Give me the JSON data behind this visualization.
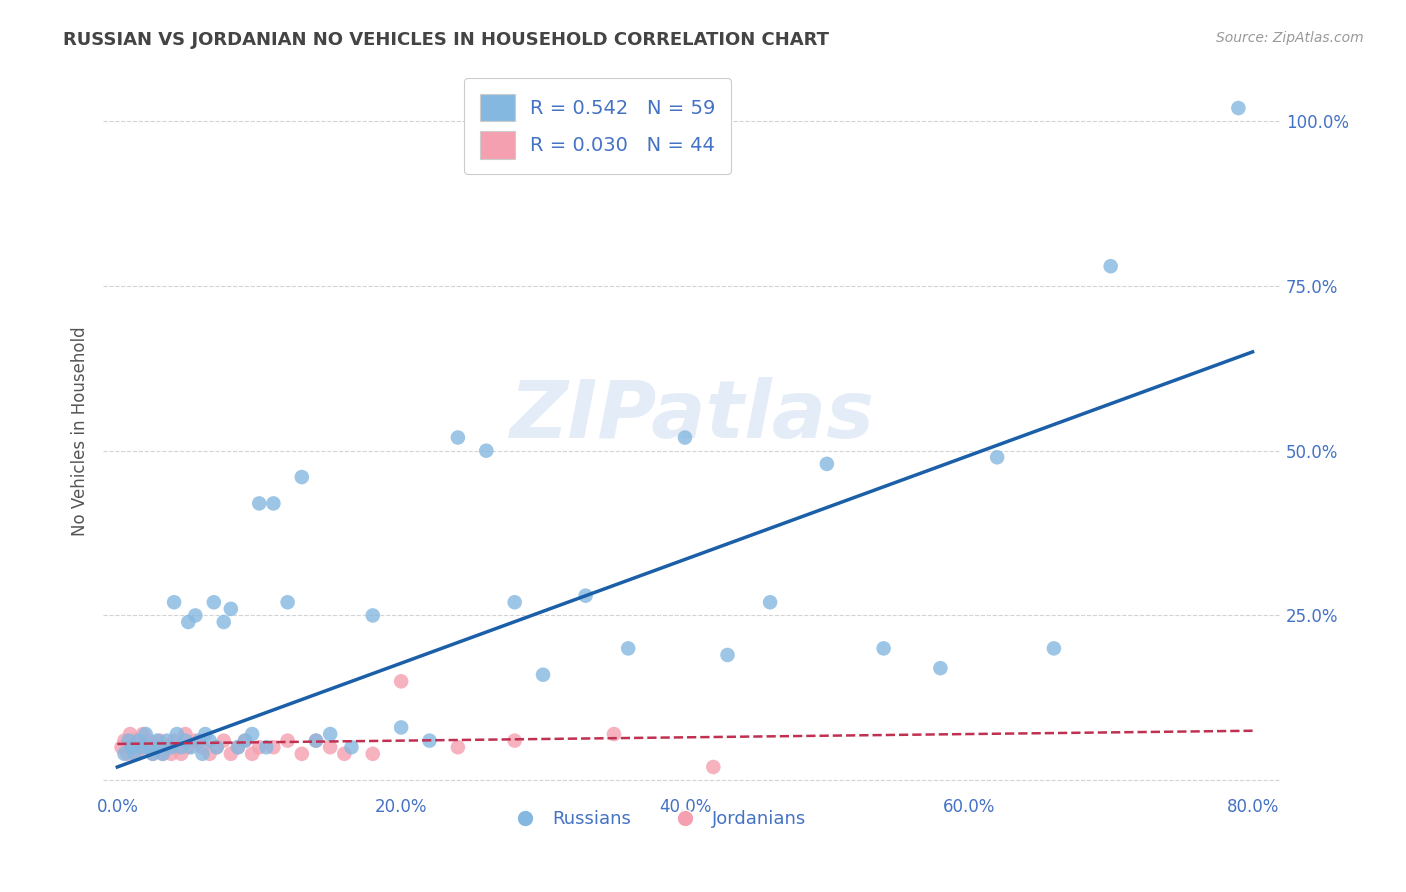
{
  "title": "RUSSIAN VS JORDANIAN NO VEHICLES IN HOUSEHOLD CORRELATION CHART",
  "source": "Source: ZipAtlas.com",
  "ylabel": "No Vehicles in Household",
  "xlim": [
    -0.01,
    0.82
  ],
  "ylim": [
    -0.02,
    1.08
  ],
  "xticks": [
    0.0,
    0.2,
    0.4,
    0.6,
    0.8
  ],
  "xticklabels": [
    "0.0%",
    "20.0%",
    "40.0%",
    "60.0%",
    "80.0%"
  ],
  "yticks": [
    0.0,
    0.25,
    0.5,
    0.75,
    1.0
  ],
  "yticklabels": [
    "",
    "25.0%",
    "50.0%",
    "75.0%",
    "100.0%"
  ],
  "russian_color": "#85B8E0",
  "jordanian_color": "#F4A0B0",
  "russian_line_color": "#1A5FA8",
  "jordanian_line_color": "#C03050",
  "background_color": "#ffffff",
  "grid_color": "#c8c8c8",
  "title_color": "#444444",
  "axis_label_color": "#4472C4",
  "tick_color": "#4472C4",
  "watermark": "ZIPatlas",
  "russian_x": [
    0.005,
    0.008,
    0.01,
    0.012,
    0.015,
    0.018,
    0.02,
    0.022,
    0.025,
    0.028,
    0.03,
    0.032,
    0.035,
    0.038,
    0.04,
    0.042,
    0.045,
    0.048,
    0.05,
    0.052,
    0.055,
    0.058,
    0.06,
    0.062,
    0.065,
    0.068,
    0.07,
    0.075,
    0.08,
    0.085,
    0.09,
    0.095,
    0.1,
    0.105,
    0.11,
    0.12,
    0.13,
    0.14,
    0.15,
    0.165,
    0.18,
    0.2,
    0.22,
    0.24,
    0.26,
    0.28,
    0.3,
    0.33,
    0.36,
    0.4,
    0.43,
    0.46,
    0.5,
    0.54,
    0.58,
    0.62,
    0.66,
    0.7,
    0.79
  ],
  "russian_y": [
    0.04,
    0.06,
    0.05,
    0.04,
    0.06,
    0.05,
    0.07,
    0.05,
    0.04,
    0.06,
    0.05,
    0.04,
    0.06,
    0.05,
    0.27,
    0.07,
    0.05,
    0.06,
    0.24,
    0.05,
    0.25,
    0.06,
    0.04,
    0.07,
    0.06,
    0.27,
    0.05,
    0.24,
    0.26,
    0.05,
    0.06,
    0.07,
    0.42,
    0.05,
    0.42,
    0.27,
    0.46,
    0.06,
    0.07,
    0.05,
    0.25,
    0.08,
    0.06,
    0.52,
    0.5,
    0.27,
    0.16,
    0.28,
    0.2,
    0.52,
    0.19,
    0.27,
    0.48,
    0.2,
    0.17,
    0.49,
    0.2,
    0.78,
    1.02
  ],
  "jordanian_x": [
    0.003,
    0.005,
    0.007,
    0.009,
    0.01,
    0.012,
    0.014,
    0.016,
    0.018,
    0.02,
    0.022,
    0.025,
    0.028,
    0.03,
    0.032,
    0.035,
    0.038,
    0.04,
    0.042,
    0.045,
    0.048,
    0.05,
    0.055,
    0.06,
    0.065,
    0.07,
    0.075,
    0.08,
    0.085,
    0.09,
    0.095,
    0.1,
    0.11,
    0.12,
    0.13,
    0.14,
    0.15,
    0.16,
    0.18,
    0.2,
    0.24,
    0.28,
    0.35,
    0.42
  ],
  "jordanian_y": [
    0.05,
    0.06,
    0.04,
    0.07,
    0.05,
    0.06,
    0.04,
    0.05,
    0.07,
    0.05,
    0.06,
    0.04,
    0.05,
    0.06,
    0.04,
    0.05,
    0.04,
    0.06,
    0.05,
    0.04,
    0.07,
    0.05,
    0.06,
    0.05,
    0.04,
    0.05,
    0.06,
    0.04,
    0.05,
    0.06,
    0.04,
    0.05,
    0.05,
    0.06,
    0.04,
    0.06,
    0.05,
    0.04,
    0.04,
    0.15,
    0.05,
    0.06,
    0.07,
    0.02
  ],
  "russian_trend_x0": 0.0,
  "russian_trend_y0": 0.02,
  "russian_trend_x1": 0.8,
  "russian_trend_y1": 0.65,
  "jordanian_trend_x0": 0.0,
  "jordanian_trend_y0": 0.055,
  "jordanian_trend_x1": 0.8,
  "jordanian_trend_y1": 0.075
}
